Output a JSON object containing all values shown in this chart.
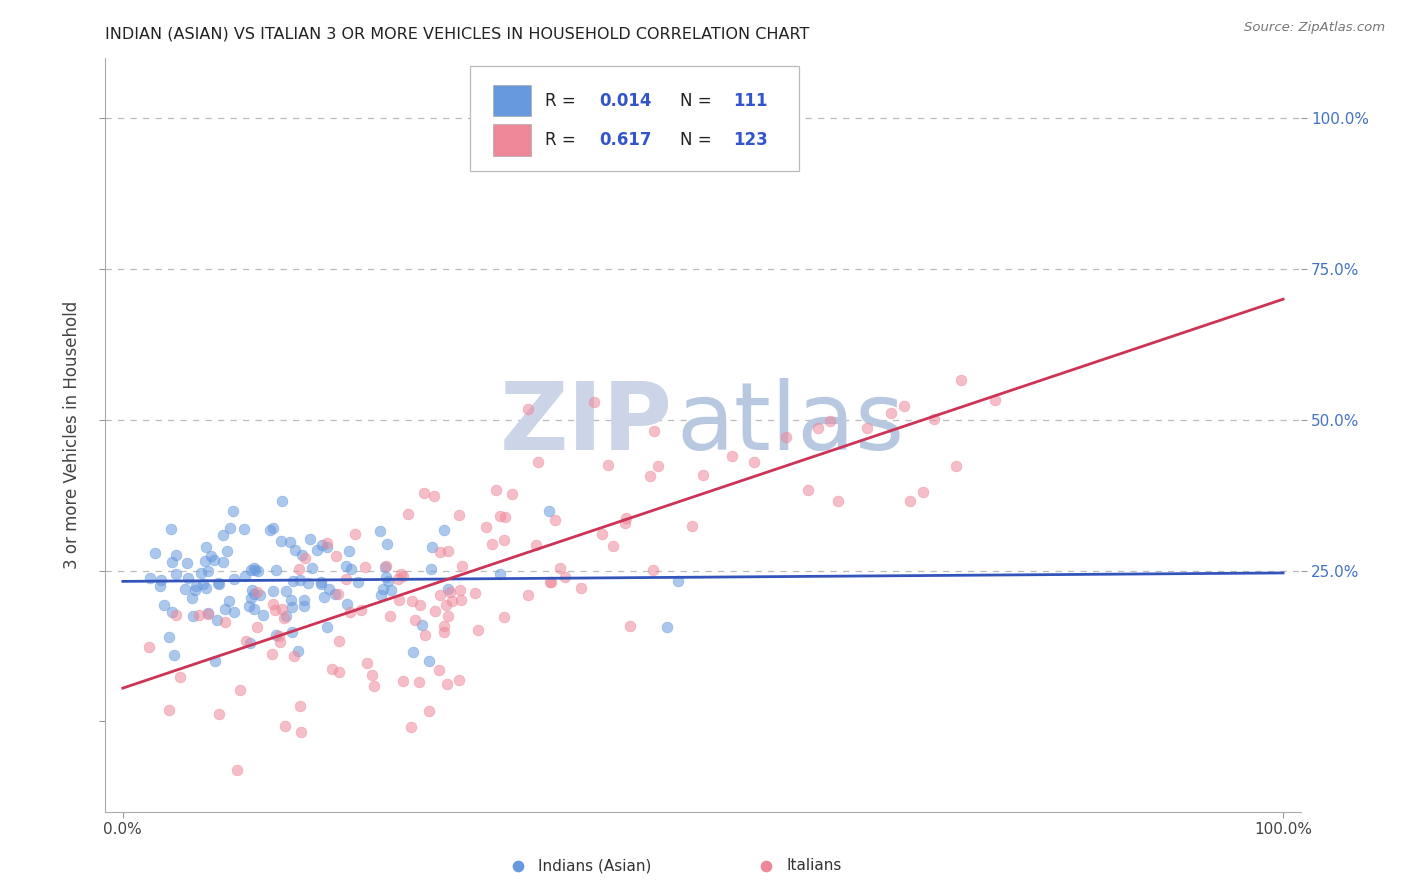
{
  "title": "INDIAN (ASIAN) VS ITALIAN 3 OR MORE VEHICLES IN HOUSEHOLD CORRELATION CHART",
  "source": "Source: ZipAtlas.com",
  "ylabel": "3 or more Vehicles in Household",
  "color_indian": "#6699dd",
  "color_italian": "#ee8899",
  "color_line_indian": "#3355bb",
  "color_line_italian": "#cc3355",
  "watermark_zip": "ZIP",
  "watermark_atlas": "atlas",
  "watermark_color_zip": "#c8d4e8",
  "watermark_color_atlas": "#aabbd8",
  "grid_color": "#bbbbbb",
  "background_color": "#ffffff",
  "legend_r1": "0.014",
  "legend_n1": "111",
  "legend_r2": "0.617",
  "legend_n2": "123",
  "trendline_indian": [
    0.0,
    1.0,
    0.232,
    0.246
  ],
  "trendline_italian": [
    0.0,
    1.0,
    0.055,
    0.7
  ],
  "xlim": [
    -0.015,
    1.015
  ],
  "ylim": [
    -0.15,
    1.1
  ]
}
